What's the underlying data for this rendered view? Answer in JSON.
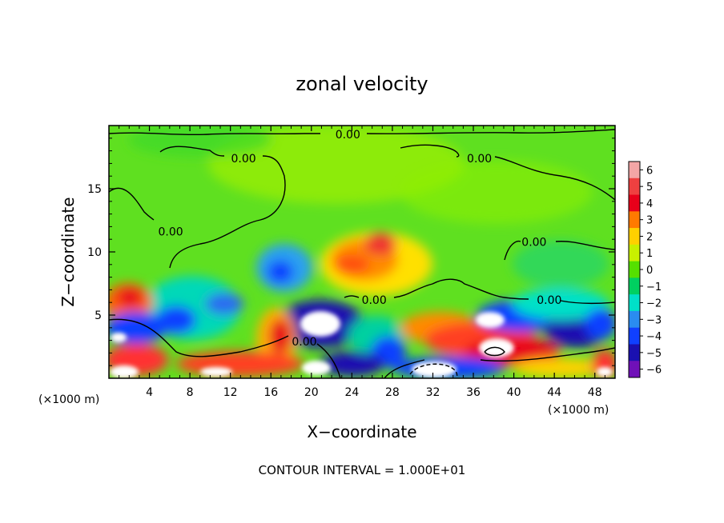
{
  "chart_data": {
    "type": "heatmap",
    "title": "zonal velocity",
    "xlabel": "X−coordinate",
    "ylabel": "Z−coordinate",
    "x_unit_left": "(×1000 m)",
    "x_unit_right": "(×1000 m)",
    "xlim": [
      0,
      50
    ],
    "ylim": [
      0,
      20
    ],
    "x_ticks": [
      4,
      8,
      12,
      16,
      20,
      24,
      28,
      32,
      36,
      40,
      44,
      48
    ],
    "x_tick_labels": [
      "4",
      "8",
      "12",
      "16",
      "20",
      "24",
      "28",
      "32",
      "36",
      "40",
      "44",
      "48"
    ],
    "y_ticks": [
      5,
      10,
      15
    ],
    "y_tick_labels": [
      "5",
      "10",
      "15"
    ],
    "colorbar": {
      "levels": [
        6,
        5,
        4,
        3,
        2,
        1,
        0,
        -1,
        -2,
        -3,
        -4,
        -5,
        -6
      ],
      "labels": [
        "6",
        "5",
        "4",
        "3",
        "2",
        "1",
        "0",
        "−1",
        "−2",
        "−3",
        "−4",
        "−5",
        "−6"
      ],
      "colors": [
        "#f4a6a6",
        "#ef4040",
        "#e8001a",
        "#ff7a00",
        "#ffd000",
        "#c8f000",
        "#55e000",
        "#00d060",
        "#00e0c8",
        "#2a8cf0",
        "#1040ff",
        "#1a10b0",
        "#7010b8"
      ]
    },
    "contour_labels": [
      {
        "text": "0.00",
        "x": 23.6,
        "z": 19.3
      },
      {
        "text": "0.00",
        "x": 13.3,
        "z": 17.4
      },
      {
        "text": "0.00",
        "x": 36.6,
        "z": 17.4
      },
      {
        "text": "0.00",
        "x": 6.1,
        "z": 11.6
      },
      {
        "text": "0.00",
        "x": 42.0,
        "z": 10.8
      },
      {
        "text": "0.00",
        "x": 26.2,
        "z": 6.2
      },
      {
        "text": "0.00",
        "x": 43.5,
        "z": 6.2
      },
      {
        "text": "0.00",
        "x": 19.3,
        "z": 2.9
      }
    ],
    "footer": "CONTOUR INTERVAL = 1.000E+01"
  }
}
